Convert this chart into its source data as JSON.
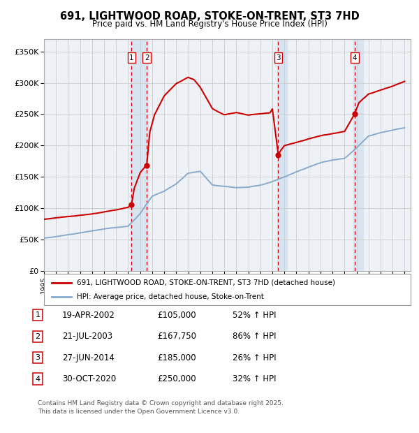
{
  "title": "691, LIGHTWOOD ROAD, STOKE-ON-TRENT, ST3 7HD",
  "subtitle": "Price paid vs. HM Land Registry's House Price Index (HPI)",
  "ylim": [
    0,
    370000
  ],
  "xlim_start": 1995.0,
  "xlim_end": 2025.5,
  "yticks": [
    0,
    50000,
    100000,
    150000,
    200000,
    250000,
    300000,
    350000
  ],
  "ytick_labels": [
    "£0",
    "£50K",
    "£100K",
    "£150K",
    "£200K",
    "£250K",
    "£300K",
    "£350K"
  ],
  "line_color_price": "#cc0000",
  "line_color_hpi": "#88aacc",
  "dot_color": "#cc0000",
  "grid_color": "#cccccc",
  "background_color": "#ffffff",
  "plot_bg_color": "#eef2f7",
  "shade_color": "#d8e4f0",
  "legend_price_label": "691, LIGHTWOOD ROAD, STOKE-ON-TRENT, ST3 7HD (detached house)",
  "legend_hpi_label": "HPI: Average price, detached house, Stoke-on-Trent",
  "transactions": [
    {
      "num": 1,
      "date": "19-APR-2002",
      "year": 2002.29,
      "price": 105000,
      "pct": "52%",
      "dir": "↑"
    },
    {
      "num": 2,
      "date": "21-JUL-2003",
      "year": 2003.55,
      "price": 167750,
      "pct": "86%",
      "dir": "↑"
    },
    {
      "num": 3,
      "date": "27-JUN-2014",
      "year": 2014.49,
      "price": 185000,
      "pct": "26%",
      "dir": "↑"
    },
    {
      "num": 4,
      "date": "30-OCT-2020",
      "year": 2020.83,
      "price": 250000,
      "pct": "32%",
      "dir": "↑"
    }
  ],
  "footer_line1": "Contains HM Land Registry data © Crown copyright and database right 2025.",
  "footer_line2": "This data is licensed under the Open Government Licence v3.0.",
  "hpi_keypoints_x": [
    1995,
    1996,
    1997,
    1998,
    1999,
    2000,
    2001,
    2002,
    2003,
    2004,
    2005,
    2006,
    2007,
    2008,
    2009,
    2010,
    2011,
    2012,
    2013,
    2014,
    2015,
    2016,
    2017,
    2018,
    2019,
    2020,
    2021,
    2022,
    2023,
    2024,
    2025
  ],
  "hpi_keypoints_y": [
    52000,
    54000,
    57000,
    60000,
    63000,
    66000,
    68000,
    70000,
    90000,
    118000,
    126000,
    138000,
    155000,
    158000,
    136000,
    134000,
    132000,
    133000,
    136000,
    142000,
    150000,
    158000,
    165000,
    172000,
    176000,
    179000,
    196000,
    215000,
    220000,
    224000,
    228000
  ],
  "price_keypoints_x": [
    1995,
    1996,
    1997,
    1998,
    1999,
    2000,
    2001,
    2002.0,
    2002.29,
    2002.5,
    2003.0,
    2003.55,
    2003.8,
    2004.2,
    2005,
    2006,
    2007.0,
    2007.5,
    2008,
    2009,
    2010,
    2011,
    2012,
    2013,
    2013.8,
    2014.0,
    2014.49,
    2014.7,
    2015,
    2016,
    2017,
    2018,
    2019,
    2020.0,
    2020.83,
    2021.2,
    2022,
    2023,
    2024,
    2025
  ],
  "price_keypoints_y": [
    82000,
    84000,
    86000,
    88000,
    90000,
    93000,
    96000,
    100000,
    105000,
    130000,
    155000,
    167750,
    220000,
    248000,
    278000,
    298000,
    308000,
    304000,
    292000,
    258000,
    248000,
    252000,
    248000,
    250000,
    252000,
    258000,
    185000,
    192000,
    200000,
    205000,
    210000,
    215000,
    218000,
    222000,
    250000,
    268000,
    282000,
    288000,
    294000,
    302000
  ]
}
